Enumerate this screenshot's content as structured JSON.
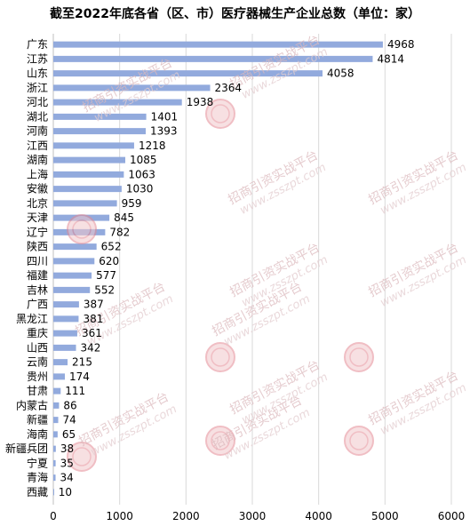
{
  "chart_data": {
    "type": "bar",
    "orientation": "horizontal",
    "title": "截至2022年底各省（区、市）医疗器械生产企业总数（单位：家）",
    "categories": [
      "广东",
      "江苏",
      "山东",
      "浙江",
      "河北",
      "湖北",
      "河南",
      "江西",
      "湖南",
      "上海",
      "安徽",
      "北京",
      "天津",
      "辽宁",
      "陕西",
      "四川",
      "福建",
      "吉林",
      "广西",
      "黑龙江",
      "重庆",
      "山西",
      "云南",
      "贵州",
      "甘肃",
      "内蒙古",
      "新疆",
      "海南",
      "新疆兵团",
      "宁夏",
      "青海",
      "西藏"
    ],
    "values": [
      4968,
      4814,
      4058,
      2364,
      1938,
      1401,
      1393,
      1218,
      1085,
      1063,
      1030,
      959,
      845,
      782,
      652,
      620,
      577,
      552,
      387,
      381,
      361,
      342,
      215,
      174,
      111,
      86,
      74,
      65,
      38,
      35,
      34,
      10
    ],
    "xlim": [
      0,
      6000
    ],
    "xticks": [
      0,
      1000,
      2000,
      3000,
      4000,
      5000,
      6000
    ],
    "grid": "vertical",
    "legend": "none",
    "bar_color": "#92aadd"
  },
  "watermark": {
    "text": "招商引资实战平台",
    "url": "www.zsszpt.com"
  }
}
